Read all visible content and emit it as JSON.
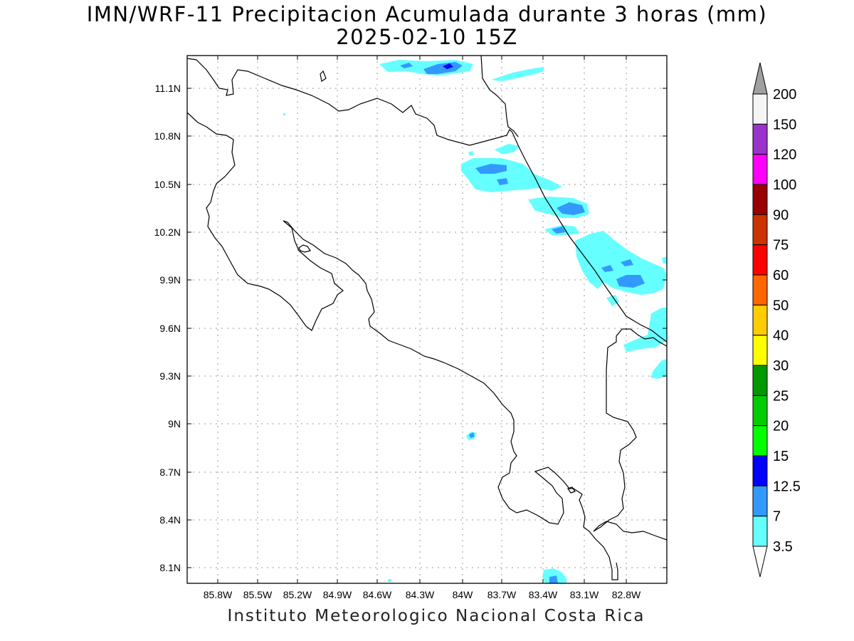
{
  "title_line_1": "IMN/WRF-11 Precipitacion Acumulada durante 3 horas (mm)",
  "title_line_2": "2025-02-10 15Z",
  "footer": "Instituto Meteorologico Nacional Costa Rica",
  "map": {
    "lon_labels": [
      "85.8W",
      "85.5W",
      "85.2W",
      "84.9W",
      "84.6W",
      "84.3W",
      "84W",
      "83.7W",
      "83.4W",
      "83.1W",
      "82.8W"
    ],
    "lat_labels": [
      "11.1N",
      "10.8N",
      "10.5N",
      "10.2N",
      "9.9N",
      "9.6N",
      "9.3N",
      "9N",
      "8.7N",
      "8.4N",
      "8.1N"
    ],
    "grid": "dotted",
    "coastline_color": "#000000"
  },
  "colorbar": {
    "labels": [
      "200",
      "150",
      "120",
      "100",
      "90",
      "75",
      "60",
      "50",
      "40",
      "30",
      "25",
      "20",
      "15",
      "12.5",
      "7",
      "3.5"
    ],
    "colors": [
      "#f5f5f5",
      "#9933cc",
      "#ff00ff",
      "#990000",
      "#cc3300",
      "#ff0000",
      "#ff6600",
      "#ffcc00",
      "#ffff00",
      "#009900",
      "#00cc00",
      "#00ff00",
      "#0000ff",
      "#3399ff",
      "#66ffff"
    ],
    "top_arrow_color": "#a0a0a0",
    "bottom_arrow_color": "#ffffff"
  }
}
